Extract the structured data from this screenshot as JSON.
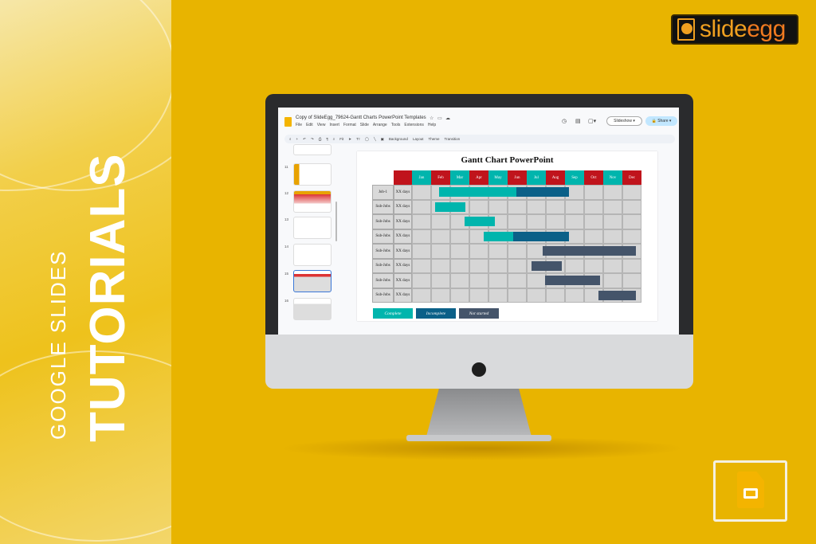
{
  "banner": {
    "line1": "GOOGLE SLIDES",
    "line2": "TUTORIALS"
  },
  "logo": {
    "text_a": "slide",
    "text_b": "egg"
  },
  "app": {
    "doc_title": "Copy of SlideEgg_79624-Gantt Charts PowerPoint Templates",
    "menu": [
      "File",
      "Edit",
      "View",
      "Insert",
      "Format",
      "Slide",
      "Arrange",
      "Tools",
      "Extensions",
      "Help"
    ],
    "toolbar": {
      "zoom": "Fit",
      "items": [
        "Background",
        "Layout",
        "Theme",
        "Transition"
      ]
    },
    "slideshow_label": "Slideshow",
    "share_label": "Share",
    "thumbnails": [
      "11",
      "12",
      "13",
      "14",
      "15",
      "16"
    ],
    "selected_thumbnail": "15"
  },
  "chart_data": {
    "type": "gantt",
    "title": "Gantt Chart PowerPoint",
    "categories": [
      "Jan",
      "Feb",
      "Mar",
      "Apr",
      "May",
      "Jun",
      "Jul",
      "Aug",
      "Sep",
      "Oct",
      "Nov",
      "Dec"
    ],
    "header_colors": [
      "#00B5AD",
      "#C0141C"
    ],
    "rows": [
      {
        "label": "Job-1",
        "days": "XX days",
        "segments": [
          {
            "status": "Complete",
            "start": 1.4,
            "end": 5.45
          },
          {
            "status": "Incomplete",
            "start": 5.45,
            "end": 8.2
          }
        ]
      },
      {
        "label": "Sub-Jobs",
        "days": "XX days",
        "segments": [
          {
            "status": "Complete",
            "start": 1.2,
            "end": 2.8
          }
        ]
      },
      {
        "label": "Sub-Jobs",
        "days": "XX days",
        "segments": [
          {
            "status": "Complete",
            "start": 2.75,
            "end": 4.35
          }
        ]
      },
      {
        "label": "Sub-Jobs",
        "days": "XX days",
        "segments": [
          {
            "status": "Complete",
            "start": 3.75,
            "end": 5.3
          },
          {
            "status": "Incomplete",
            "start": 5.3,
            "end": 8.2
          }
        ]
      },
      {
        "label": "Sub-Jobs",
        "days": "XX days",
        "segments": [
          {
            "status": "Not started",
            "start": 6.85,
            "end": 11.7
          }
        ]
      },
      {
        "label": "Sub-Jobs",
        "days": "XX days",
        "segments": [
          {
            "status": "Not started",
            "start": 6.25,
            "end": 7.85
          }
        ]
      },
      {
        "label": "Sub-Jobs",
        "days": "XX days",
        "segments": [
          {
            "status": "Not started",
            "start": 6.95,
            "end": 9.85
          }
        ]
      },
      {
        "label": "Sub-Jobs",
        "days": "XX days",
        "segments": [
          {
            "status": "Not started",
            "start": 9.75,
            "end": 11.7
          }
        ]
      }
    ],
    "legend": [
      {
        "name": "Complete",
        "color": "#00B5AD"
      },
      {
        "name": "Incomplete",
        "color": "#0B6088"
      },
      {
        "name": "Not started",
        "color": "#44546A"
      }
    ]
  }
}
